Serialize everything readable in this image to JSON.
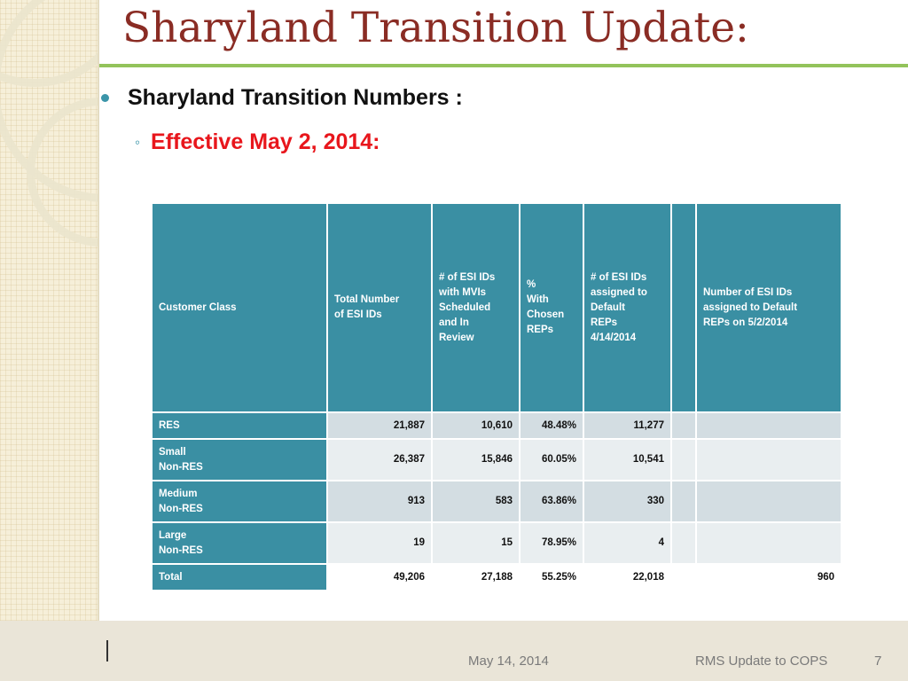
{
  "slide": {
    "title": "Sharyland Transition Update:",
    "bullet1": "Sharyland Transition Numbers :",
    "bullet2": "Effective May 2, 2014:"
  },
  "table": {
    "headers": [
      "Customer Class",
      "Total Number\nof ESI IDs",
      "# of ESI IDs\nwith MVIs\nScheduled\nand In\nReview",
      "%\nWith\nChosen\nREPs",
      "# of ESI IDs\nassigned to\nDefault\nREPs\n4/14/2014",
      "",
      "Number of ESI IDs\nassigned to Default\nREPs on 5/2/2014"
    ],
    "rows": [
      {
        "class": "RES",
        "total": "21,887",
        "mvis": "10,610",
        "pct": "48.48%",
        "default_414": "11,277",
        "blank": "",
        "default_52": ""
      },
      {
        "class": "Small\nNon-RES",
        "total": "26,387",
        "mvis": "15,846",
        "pct": "60.05%",
        "default_414": "10,541",
        "blank": "",
        "default_52": ""
      },
      {
        "class": "Medium\nNon-RES",
        "total": "913",
        "mvis": "583",
        "pct": "63.86%",
        "default_414": "330",
        "blank": "",
        "default_52": ""
      },
      {
        "class": "Large\nNon-RES",
        "total": "19",
        "mvis": "15",
        "pct": "78.95%",
        "default_414": "4",
        "blank": "",
        "default_52": ""
      },
      {
        "class": "Total",
        "total": "49,206",
        "mvis": "27,188",
        "pct": "55.25%",
        "default_414": "22,018",
        "blank": "",
        "default_52": "960"
      }
    ]
  },
  "footer": {
    "date": "May 14, 2014",
    "text": "RMS Update to COPS",
    "page": "7"
  },
  "colors": {
    "title": "#8a2c24",
    "accent_rule": "#93c35b",
    "table_header": "#3a8fa3",
    "subbullet": "#e8161c"
  }
}
